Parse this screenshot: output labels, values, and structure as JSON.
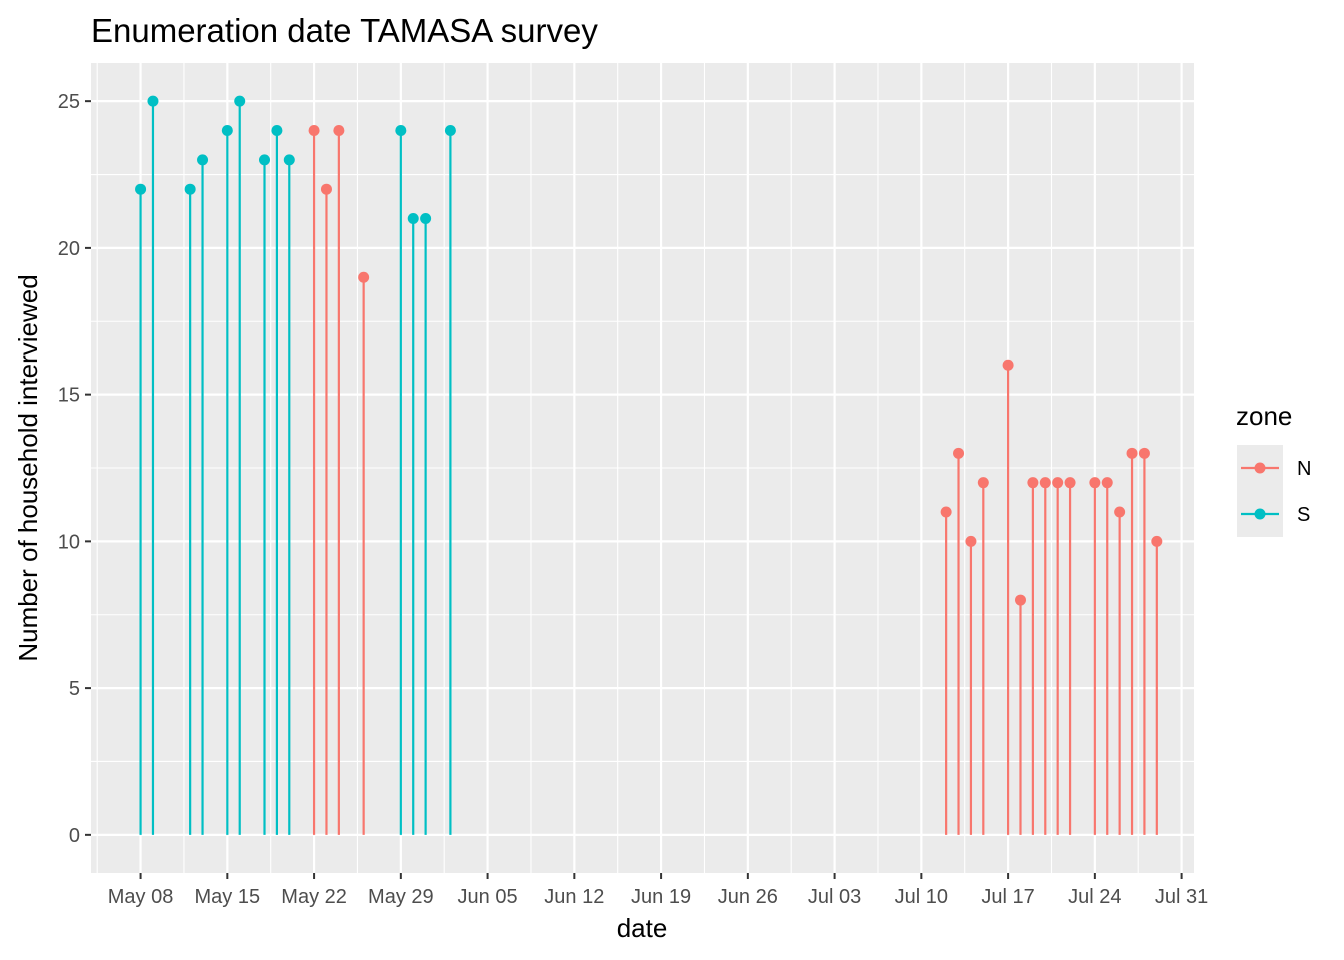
{
  "chart_data": {
    "type": "scatter",
    "subtype": "lollipop",
    "title": "Enumeration date TAMASA survey",
    "xlabel": "date",
    "ylabel": "Number of household interviewed",
    "xlim": [
      "2017-05-04",
      "2017-08-01"
    ],
    "ylim": [
      -1.3,
      26.3
    ],
    "x_ticks": [
      "May 08",
      "May 15",
      "May 22",
      "May 29",
      "Jun 05",
      "Jun 12",
      "Jun 19",
      "Jun 26",
      "Jul 03",
      "Jul 10",
      "Jul 17",
      "Jul 24",
      "Jul 31"
    ],
    "x_tick_dates": [
      "2017-05-08",
      "2017-05-15",
      "2017-05-22",
      "2017-05-29",
      "2017-06-05",
      "2017-06-12",
      "2017-06-19",
      "2017-06-26",
      "2017-07-03",
      "2017-07-10",
      "2017-07-17",
      "2017-07-24",
      "2017-07-31"
    ],
    "y_ticks": [
      0,
      5,
      10,
      15,
      20,
      25
    ],
    "grid": true,
    "legend": {
      "title": "zone",
      "position": "right"
    },
    "series": [
      {
        "name": "N",
        "color": "#F8766D",
        "points": [
          {
            "x": "2017-05-22",
            "y": 24
          },
          {
            "x": "2017-05-23",
            "y": 22
          },
          {
            "x": "2017-05-24",
            "y": 24
          },
          {
            "x": "2017-05-26",
            "y": 19
          },
          {
            "x": "2017-07-12",
            "y": 11
          },
          {
            "x": "2017-07-13",
            "y": 13
          },
          {
            "x": "2017-07-14",
            "y": 10
          },
          {
            "x": "2017-07-15",
            "y": 12
          },
          {
            "x": "2017-07-17",
            "y": 16
          },
          {
            "x": "2017-07-18",
            "y": 8
          },
          {
            "x": "2017-07-19",
            "y": 12
          },
          {
            "x": "2017-07-20",
            "y": 12
          },
          {
            "x": "2017-07-21",
            "y": 12
          },
          {
            "x": "2017-07-22",
            "y": 12
          },
          {
            "x": "2017-07-24",
            "y": 12
          },
          {
            "x": "2017-07-25",
            "y": 12
          },
          {
            "x": "2017-07-26",
            "y": 11
          },
          {
            "x": "2017-07-27",
            "y": 13
          },
          {
            "x": "2017-07-28",
            "y": 13
          },
          {
            "x": "2017-07-29",
            "y": 10
          }
        ]
      },
      {
        "name": "S",
        "color": "#00BFC4",
        "points": [
          {
            "x": "2017-05-08",
            "y": 22
          },
          {
            "x": "2017-05-09",
            "y": 25
          },
          {
            "x": "2017-05-12",
            "y": 22
          },
          {
            "x": "2017-05-13",
            "y": 23
          },
          {
            "x": "2017-05-15",
            "y": 24
          },
          {
            "x": "2017-05-16",
            "y": 25
          },
          {
            "x": "2017-05-18",
            "y": 23
          },
          {
            "x": "2017-05-19",
            "y": 24
          },
          {
            "x": "2017-05-20",
            "y": 23
          },
          {
            "x": "2017-05-29",
            "y": 24
          },
          {
            "x": "2017-05-30",
            "y": 21
          },
          {
            "x": "2017-05-31",
            "y": 21
          },
          {
            "x": "2017-06-02",
            "y": 24
          }
        ]
      }
    ],
    "colors": {
      "panel": "#EBEBEB",
      "grid": "#FFFFFF",
      "tick_label": "#4D4D4D"
    }
  }
}
